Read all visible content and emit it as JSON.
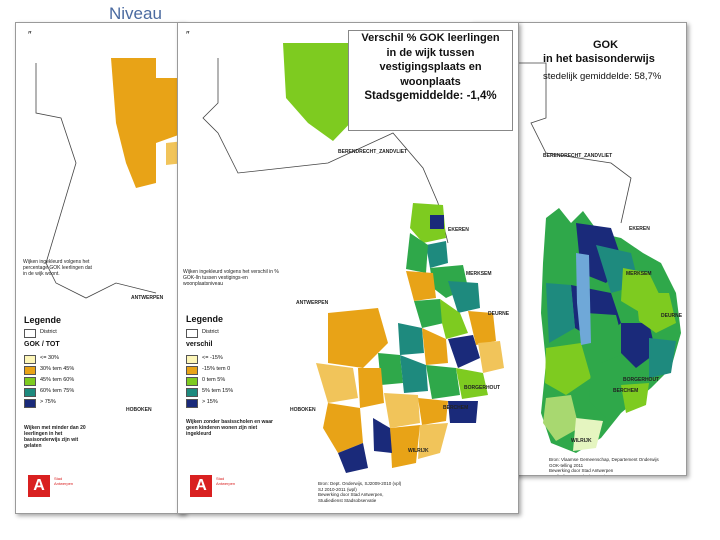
{
  "slide": {
    "title": "Niveau"
  },
  "colors": {
    "orange": "#e8a317",
    "light_orange": "#f1c45a",
    "pale_yellow": "#fdf6b8",
    "lime": "#7ecb20",
    "green": "#2fa84a",
    "teal": "#1e8a7e",
    "navy": "#1a2a7a",
    "gray": "#c8c8c8",
    "brand_red": "#d92020"
  },
  "left_map": {
    "district_labels": [
      "ANTWERPEN",
      "HOBOKEN"
    ],
    "map_note": "Wijken ingekleurd volgens het percentage GOK leerlingen dat in de wijk woont.",
    "legend_title": "Legende",
    "district_entry": "District",
    "legend_subtitle": "GOK / TOT",
    "legend_items": [
      "<= 30%",
      "30% tem 45%",
      "45% tem 60%",
      "60% tem 75%",
      "> 75%"
    ],
    "footnote": "Wijken met minder dan 20 leerlingen in het basisonderwijs zijn wit gelaten",
    "logo_glyph": "A",
    "logo_text": "Stad Antwerpen"
  },
  "middle_map": {
    "title_lines": [
      "Verschil % GOK leerlingen",
      "in de wijk tussen",
      "vestigingsplaats en",
      "woonplaats"
    ],
    "average": "Stadsgemiddelde: -1,4%",
    "district_labels": [
      "BERENDRECHT_ZANDVLIET",
      "EKEREN",
      "MERKSEM",
      "ANTWERPEN",
      "DEURNE",
      "BORGERHOUT",
      "HOBOKEN",
      "BERCHEM",
      "WILRIJK"
    ],
    "map_note": "Wijken ingekleurd volgens het verschil in % GOK-lln tussen vestigings-en woonplaatsniveau",
    "legend_title": "Legende",
    "district_entry": "District",
    "legend_subtitle": "verschil",
    "legend_items": [
      "<= -15%",
      "-15% tem 0",
      "0 tem 5%",
      "5% tem 15%",
      "> 15%"
    ],
    "footnote": "Wijken zonder basisscholen en waar geen kinderen wonen zijn niet ingekleurd",
    "logo_glyph": "A",
    "logo_text": "Stad Antwerpen",
    "source": "Bron: Dept. Onderwijs, SJ2009-2010 (vpl)\nSJ 2010-2011 (wpl)\nBewerking door Stad Antwerpen,\nStudiedienst Stadsobservatie"
  },
  "right_map": {
    "title_lines": [
      "GOK",
      "in het basisonderwijs"
    ],
    "average": "stedelijk gemiddelde: 58,7%",
    "district_labels": [
      "BERENDRECHT_ZANDVLIET",
      "EKEREN",
      "MERKSEM",
      "DEURNE",
      "BORGERHOUT",
      "BERCHEM",
      "WILRIJK"
    ],
    "source": "Bron: Vlaamse Gemeenschap, Departement Onderwijs\nGOK-telling 2011\nBewerking door Stad Antwerpen\nStudiedienst Stadsobservatie"
  }
}
